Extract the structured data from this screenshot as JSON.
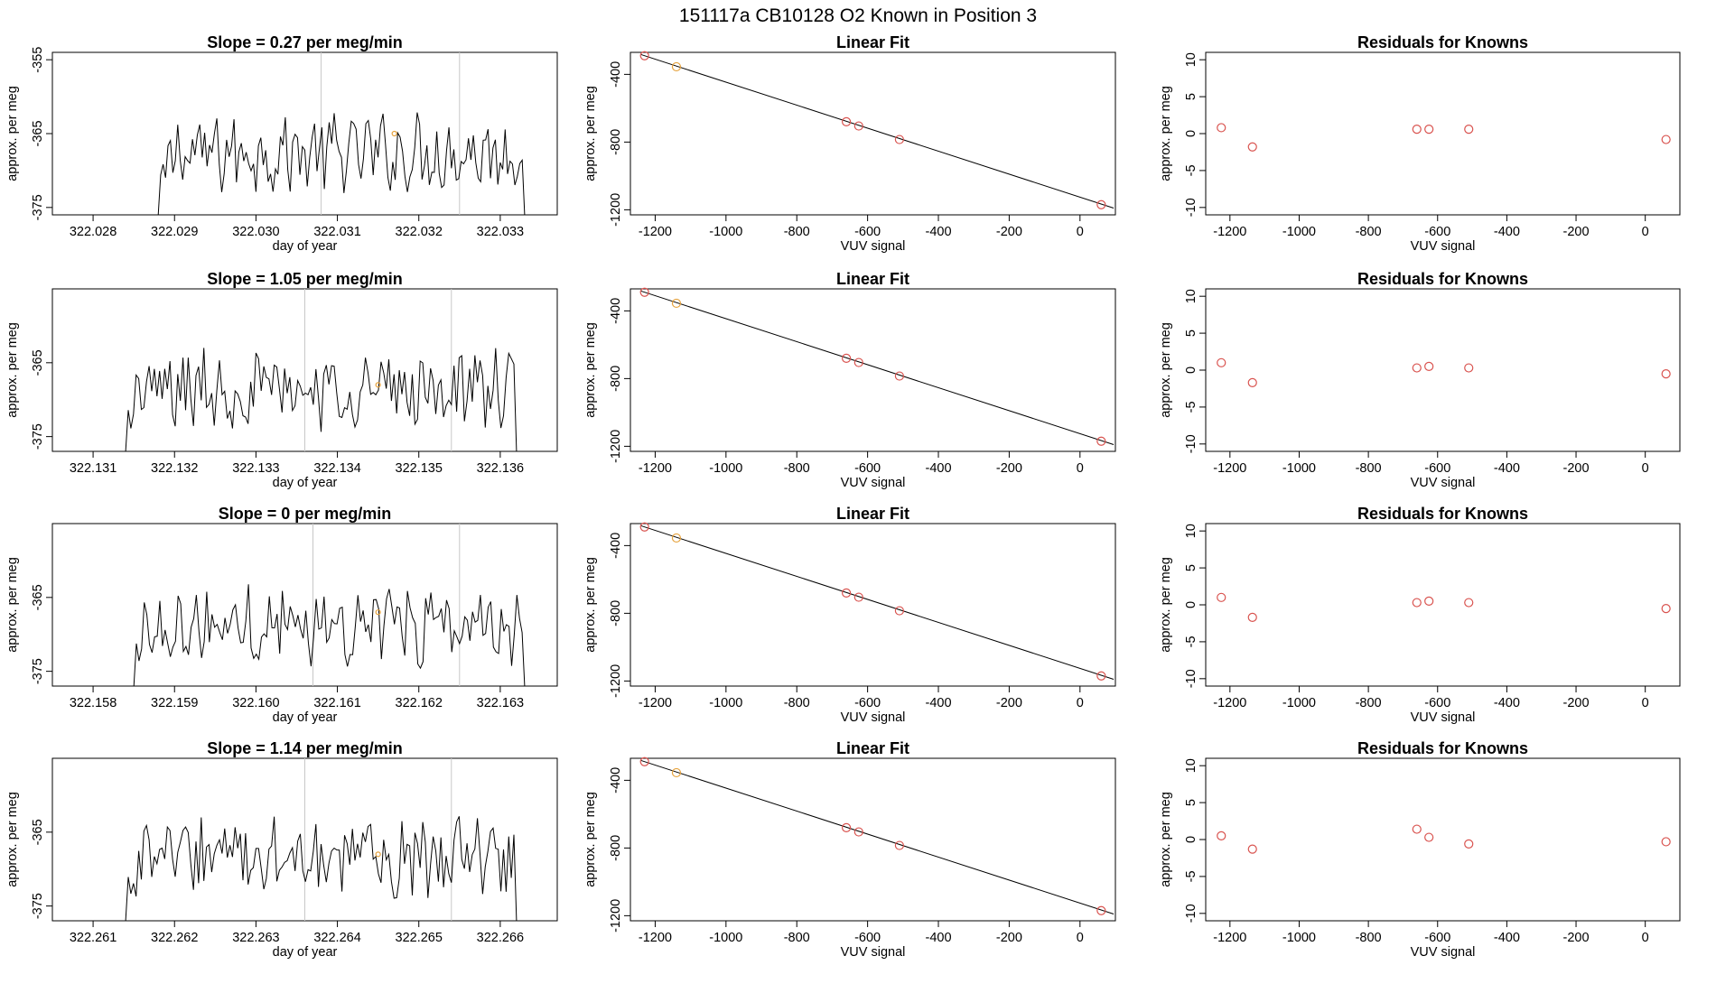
{
  "figure_title": "151117a      CB10128    O2 Known in Position  3",
  "colors": {
    "line": "#000000",
    "known_point": "#e6a23c",
    "residual_point": "#d9534f",
    "guide": "#c8c8c8"
  },
  "chart_data": [
    {
      "type": "line",
      "title": "Slope =  0.27  per meg/min",
      "xlabel": "day of year",
      "ylabel": "approx. per meg",
      "xlim": [
        322.0275,
        322.0337
      ],
      "ylim": [
        -376,
        -354
      ],
      "xticks": [
        "322.028",
        "322.029",
        "322.030",
        "322.031",
        "322.032",
        "322.033"
      ],
      "xtick_values": [
        322.028,
        322.029,
        322.03,
        322.031,
        322.032,
        322.033
      ],
      "yticks": [
        "-355",
        "-365",
        "-375"
      ],
      "ytick_values": [
        -355,
        -365,
        -375
      ],
      "data_start": 322.0288,
      "data_end": 322.0333,
      "marker_day": 322.0317,
      "marker_value": -365,
      "guide_lines": [
        322.0308,
        322.0325
      ]
    },
    {
      "type": "scatter",
      "title": "Linear Fit",
      "xlabel": "VUV signal",
      "ylabel": "approx. per meg",
      "xlim": [
        -1270,
        100
      ],
      "ylim": [
        -1230,
        -270
      ],
      "xticks": [
        "-1200",
        "-1000",
        "-800",
        "-600",
        "-400",
        "-200",
        "0"
      ],
      "xtick_values": [
        -1200,
        -1000,
        -800,
        -600,
        -400,
        -200,
        0
      ],
      "yticks": [
        "-400",
        "-800",
        "-1200"
      ],
      "ytick_values": [
        -400,
        -800,
        -1200
      ],
      "points": [
        {
          "x": -1230,
          "y": -290,
          "color": "residual"
        },
        {
          "x": -1140,
          "y": -355,
          "color": "known"
        },
        {
          "x": -660,
          "y": -680,
          "color": "residual"
        },
        {
          "x": -625,
          "y": -705,
          "color": "residual"
        },
        {
          "x": -510,
          "y": -785,
          "color": "residual"
        },
        {
          "x": 60,
          "y": -1170,
          "color": "residual"
        }
      ],
      "fit_line": {
        "x": [
          -1240,
          95
        ],
        "y": [
          -283,
          -1190
        ]
      }
    },
    {
      "type": "scatter",
      "title": "Residuals for Knowns",
      "xlabel": "VUV signal",
      "ylabel": "approx. per meg",
      "xlim": [
        -1270,
        100
      ],
      "ylim": [
        -11,
        11
      ],
      "xticks": [
        "-1200",
        "-1000",
        "-800",
        "-600",
        "-400",
        "-200",
        "0"
      ],
      "xtick_values": [
        -1200,
        -1000,
        -800,
        -600,
        -400,
        -200,
        0
      ],
      "yticks": [
        "10",
        "5",
        "0",
        "-5",
        "-10"
      ],
      "ytick_values": [
        10,
        5,
        0,
        -5,
        -10
      ],
      "points": [
        {
          "x": -1225,
          "y": 0.8
        },
        {
          "x": -1135,
          "y": -1.8
        },
        {
          "x": -660,
          "y": 0.6
        },
        {
          "x": -625,
          "y": 0.6
        },
        {
          "x": -510,
          "y": 0.6
        },
        {
          "x": 60,
          "y": -0.8
        }
      ]
    },
    {
      "type": "line",
      "title": "Slope =  1.05  per meg/min",
      "xlabel": "day of year",
      "ylabel": "approx. per meg",
      "xlim": [
        322.1305,
        322.1367
      ],
      "ylim": [
        -377,
        -355
      ],
      "xticks": [
        "322.131",
        "322.132",
        "322.133",
        "322.134",
        "322.135",
        "322.136"
      ],
      "xtick_values": [
        322.131,
        322.132,
        322.133,
        322.134,
        322.135,
        322.136
      ],
      "yticks": [
        "-365",
        "-375"
      ],
      "ytick_values": [
        -365,
        -375
      ],
      "data_start": 322.1314,
      "data_end": 322.1362,
      "marker_day": 322.1345,
      "marker_value": -368,
      "guide_lines": [
        322.1336,
        322.1354
      ]
    },
    {
      "type": "scatter",
      "title": "Linear Fit",
      "xlabel": "VUV signal",
      "ylabel": "approx. per meg",
      "xlim": [
        -1270,
        100
      ],
      "ylim": [
        -1230,
        -270
      ],
      "xticks": [
        "-1200",
        "-1000",
        "-800",
        "-600",
        "-400",
        "-200",
        "0"
      ],
      "xtick_values": [
        -1200,
        -1000,
        -800,
        -600,
        -400,
        -200,
        0
      ],
      "yticks": [
        "-400",
        "-800",
        "-1200"
      ],
      "ytick_values": [
        -400,
        -800,
        -1200
      ],
      "points": [
        {
          "x": -1230,
          "y": -290,
          "color": "residual"
        },
        {
          "x": -1140,
          "y": -355,
          "color": "known"
        },
        {
          "x": -660,
          "y": -680,
          "color": "residual"
        },
        {
          "x": -625,
          "y": -705,
          "color": "residual"
        },
        {
          "x": -510,
          "y": -785,
          "color": "residual"
        },
        {
          "x": 60,
          "y": -1170,
          "color": "residual"
        }
      ],
      "fit_line": {
        "x": [
          -1240,
          95
        ],
        "y": [
          -283,
          -1190
        ]
      }
    },
    {
      "type": "scatter",
      "title": "Residuals for Knowns",
      "xlabel": "VUV signal",
      "ylabel": "approx. per meg",
      "xlim": [
        -1270,
        100
      ],
      "ylim": [
        -11,
        11
      ],
      "xticks": [
        "-1200",
        "-1000",
        "-800",
        "-600",
        "-400",
        "-200",
        "0"
      ],
      "xtick_values": [
        -1200,
        -1000,
        -800,
        -600,
        -400,
        -200,
        0
      ],
      "yticks": [
        "10",
        "5",
        "0",
        "-5",
        "-10"
      ],
      "ytick_values": [
        10,
        5,
        0,
        -5,
        -10
      ],
      "points": [
        {
          "x": -1225,
          "y": 1.0
        },
        {
          "x": -1135,
          "y": -1.7
        },
        {
          "x": -660,
          "y": 0.3
        },
        {
          "x": -625,
          "y": 0.5
        },
        {
          "x": -510,
          "y": 0.3
        },
        {
          "x": 60,
          "y": -0.5
        }
      ]
    },
    {
      "type": "line",
      "title": "Slope =  0  per meg/min",
      "xlabel": "day of year",
      "ylabel": "approx. per meg",
      "xlim": [
        322.1575,
        322.1637
      ],
      "ylim": [
        -377,
        -355
      ],
      "xticks": [
        "322.158",
        "322.159",
        "322.160",
        "322.161",
        "322.162",
        "322.163"
      ],
      "xtick_values": [
        322.158,
        322.159,
        322.16,
        322.161,
        322.162,
        322.163
      ],
      "yticks": [
        "-365",
        "-375"
      ],
      "ytick_values": [
        -365,
        -375
      ],
      "data_start": 322.1585,
      "data_end": 322.1633,
      "marker_day": 322.1615,
      "marker_value": -367,
      "guide_lines": [
        322.1607,
        322.1625
      ]
    },
    {
      "type": "scatter",
      "title": "Linear Fit",
      "xlabel": "VUV signal",
      "ylabel": "approx. per meg",
      "xlim": [
        -1270,
        100
      ],
      "ylim": [
        -1230,
        -270
      ],
      "xticks": [
        "-1200",
        "-1000",
        "-800",
        "-600",
        "-400",
        "-200",
        "0"
      ],
      "xtick_values": [
        -1200,
        -1000,
        -800,
        -600,
        -400,
        -200,
        0
      ],
      "yticks": [
        "-400",
        "-800",
        "-1200"
      ],
      "ytick_values": [
        -400,
        -800,
        -1200
      ],
      "points": [
        {
          "x": -1230,
          "y": -290,
          "color": "residual"
        },
        {
          "x": -1140,
          "y": -355,
          "color": "known"
        },
        {
          "x": -660,
          "y": -680,
          "color": "residual"
        },
        {
          "x": -625,
          "y": -705,
          "color": "residual"
        },
        {
          "x": -510,
          "y": -785,
          "color": "residual"
        },
        {
          "x": 60,
          "y": -1170,
          "color": "residual"
        }
      ],
      "fit_line": {
        "x": [
          -1240,
          95
        ],
        "y": [
          -283,
          -1190
        ]
      }
    },
    {
      "type": "scatter",
      "title": "Residuals for Knowns",
      "xlabel": "VUV signal",
      "ylabel": "approx. per meg",
      "xlim": [
        -1270,
        100
      ],
      "ylim": [
        -11,
        11
      ],
      "xticks": [
        "-1200",
        "-1000",
        "-800",
        "-600",
        "-400",
        "-200",
        "0"
      ],
      "xtick_values": [
        -1200,
        -1000,
        -800,
        -600,
        -400,
        -200,
        0
      ],
      "yticks": [
        "10",
        "5",
        "0",
        "-5",
        "-10"
      ],
      "ytick_values": [
        10,
        5,
        0,
        -5,
        -10
      ],
      "points": [
        {
          "x": -1225,
          "y": 1.0
        },
        {
          "x": -1135,
          "y": -1.7
        },
        {
          "x": -660,
          "y": 0.3
        },
        {
          "x": -625,
          "y": 0.5
        },
        {
          "x": -510,
          "y": 0.3
        },
        {
          "x": 60,
          "y": -0.5
        }
      ]
    },
    {
      "type": "line",
      "title": "Slope =  1.14  per meg/min",
      "xlabel": "day of year",
      "ylabel": "approx. per meg",
      "xlim": [
        322.2605,
        322.2667
      ],
      "ylim": [
        -377,
        -355
      ],
      "xticks": [
        "322.261",
        "322.262",
        "322.263",
        "322.264",
        "322.265",
        "322.266"
      ],
      "xtick_values": [
        322.261,
        322.262,
        322.263,
        322.264,
        322.265,
        322.266
      ],
      "yticks": [
        "-365",
        "-375"
      ],
      "ytick_values": [
        -365,
        -375
      ],
      "data_start": 322.2614,
      "data_end": 322.2662,
      "marker_day": 322.2645,
      "marker_value": -368,
      "guide_lines": [
        322.2636,
        322.2654
      ]
    },
    {
      "type": "scatter",
      "title": "Linear Fit",
      "xlabel": "VUV signal",
      "ylabel": "approx. per meg",
      "xlim": [
        -1270,
        100
      ],
      "ylim": [
        -1230,
        -270
      ],
      "xticks": [
        "-1200",
        "-1000",
        "-800",
        "-600",
        "-400",
        "-200",
        "0"
      ],
      "xtick_values": [
        -1200,
        -1000,
        -800,
        -600,
        -400,
        -200,
        0
      ],
      "yticks": [
        "-400",
        "-800",
        "-1200"
      ],
      "ytick_values": [
        -400,
        -800,
        -1200
      ],
      "points": [
        {
          "x": -1230,
          "y": -290,
          "color": "residual"
        },
        {
          "x": -1140,
          "y": -355,
          "color": "known"
        },
        {
          "x": -660,
          "y": -680,
          "color": "residual"
        },
        {
          "x": -625,
          "y": -705,
          "color": "residual"
        },
        {
          "x": -510,
          "y": -785,
          "color": "residual"
        },
        {
          "x": 60,
          "y": -1170,
          "color": "residual"
        }
      ],
      "fit_line": {
        "x": [
          -1240,
          95
        ],
        "y": [
          -283,
          -1190
        ]
      }
    },
    {
      "type": "scatter",
      "title": "Residuals for Knowns",
      "xlabel": "VUV signal",
      "ylabel": "approx. per meg",
      "xlim": [
        -1270,
        100
      ],
      "ylim": [
        -11,
        11
      ],
      "xticks": [
        "-1200",
        "-1000",
        "-800",
        "-600",
        "-400",
        "-200",
        "0"
      ],
      "xtick_values": [
        -1200,
        -1000,
        -800,
        -600,
        -400,
        -200,
        0
      ],
      "yticks": [
        "10",
        "5",
        "0",
        "-5",
        "-10"
      ],
      "ytick_values": [
        10,
        5,
        0,
        -5,
        -10
      ],
      "points": [
        {
          "x": -1225,
          "y": 0.5
        },
        {
          "x": -1135,
          "y": -1.3
        },
        {
          "x": -660,
          "y": 1.4
        },
        {
          "x": -625,
          "y": 0.3
        },
        {
          "x": -510,
          "y": -0.6
        },
        {
          "x": 60,
          "y": -0.3
        }
      ]
    }
  ]
}
